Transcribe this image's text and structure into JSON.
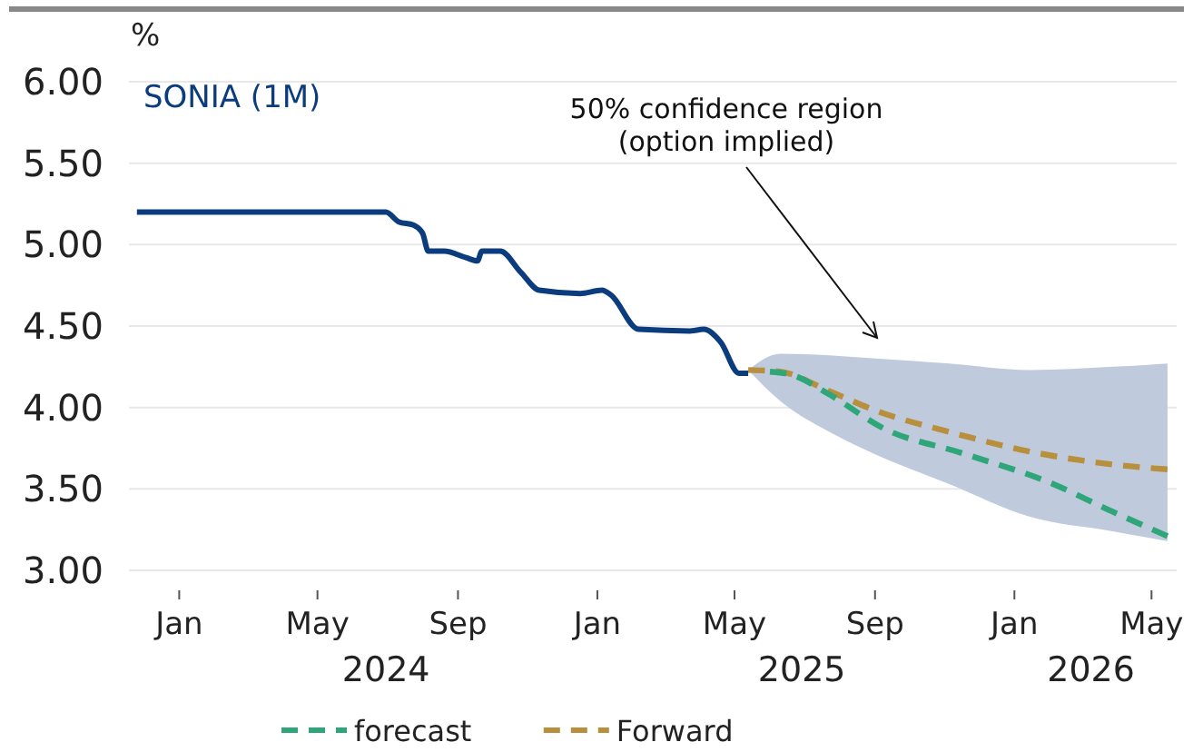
{
  "chart_data": {
    "type": "line",
    "ylabel": "%",
    "xlim": [
      "2023-11-18",
      "2026-05-23"
    ],
    "xticks": [
      {
        "value": "2024-01-01",
        "label": "Jan"
      },
      {
        "value": "2024-05-01",
        "label": "May"
      },
      {
        "value": "2024-09-01",
        "label": "Sep"
      },
      {
        "value": "2025-01-01",
        "label": "Jan"
      },
      {
        "value": "2025-05-01",
        "label": "May"
      },
      {
        "value": "2025-09-01",
        "label": "Sep"
      },
      {
        "value": "2026-01-01",
        "label": "Jan"
      },
      {
        "value": "2026-05-01",
        "label": "May"
      }
    ],
    "x2lim": [
      "2023-11-18",
      "2026-05-23"
    ],
    "x2ticks": [
      {
        "value": "2024-06-30",
        "label": "2024"
      },
      {
        "value": "2025-06-29",
        "label": "2025"
      },
      {
        "value": "2026-03-09",
        "label": "2026"
      }
    ],
    "ylim": [
      3,
      6
    ],
    "yticks": [
      {
        "value": 3,
        "label": "3.00"
      },
      {
        "value": 3.5,
        "label": "3.50"
      },
      {
        "value": 4,
        "label": "4.00"
      },
      {
        "value": 4.5,
        "label": "4.50"
      },
      {
        "value": 5,
        "label": "5.00"
      },
      {
        "value": 5.5,
        "label": "5.50"
      },
      {
        "value": 6,
        "label": "6.00"
      }
    ],
    "grid": "y",
    "legend": "bottom",
    "annotations": [
      "50% confidence region\n(option implied)"
    ],
    "series": [
      {
        "name": "SONIA (1M)",
        "color": "#0b3c7d",
        "line_style": "solid",
        "x": [
          "2023-11-25",
          "2024-06-30",
          "2024-07-11",
          "2024-07-24",
          "2024-08-01",
          "2024-08-06",
          "2024-08-20",
          "2024-09-08",
          "2024-09-18",
          "2024-09-22",
          "2024-10-08",
          "2024-10-26",
          "2024-11-11",
          "2024-12-17",
          "2025-01-05",
          "2025-01-13",
          "2025-02-06",
          "2025-03-23",
          "2025-04-04",
          "2025-04-19",
          "2025-05-05",
          "2025-05-13"
        ],
        "values": [
          5.2,
          5.2,
          5.14,
          5.12,
          5.07,
          4.96,
          4.96,
          4.92,
          4.9,
          4.96,
          4.96,
          4.83,
          4.72,
          4.7,
          4.72,
          4.69,
          4.48,
          4.47,
          4.48,
          4.4,
          4.21,
          4.21
        ]
      },
      {
        "name": "forecast",
        "color": "#2ea67a",
        "line_style": "dashed",
        "x": [
          "2025-06-01",
          "2025-06-20",
          "2025-07-23",
          "2025-09-09",
          "2025-11-16",
          "2026-02-04",
          "2026-03-28",
          "2026-05-15"
        ],
        "values": [
          4.22,
          4.2,
          4.08,
          3.87,
          3.72,
          3.53,
          3.36,
          3.21
        ]
      },
      {
        "name": "Forward",
        "color": "#b88f3c",
        "line_style": "dashed",
        "x": [
          "2025-05-13",
          "2025-06-10",
          "2025-07-23",
          "2025-09-02",
          "2025-11-05",
          "2026-01-14",
          "2026-03-28",
          "2026-05-15"
        ],
        "values": [
          4.23,
          4.22,
          4.1,
          3.98,
          3.85,
          3.73,
          3.65,
          3.62
        ],
        "lower": [
          4.23,
          4.04,
          3.85,
          3.71,
          3.53,
          3.33,
          3.24,
          3.18
        ],
        "upper": [
          4.23,
          4.33,
          4.32,
          4.3,
          4.27,
          4.23,
          4.25,
          4.27
        ]
      }
    ]
  }
}
